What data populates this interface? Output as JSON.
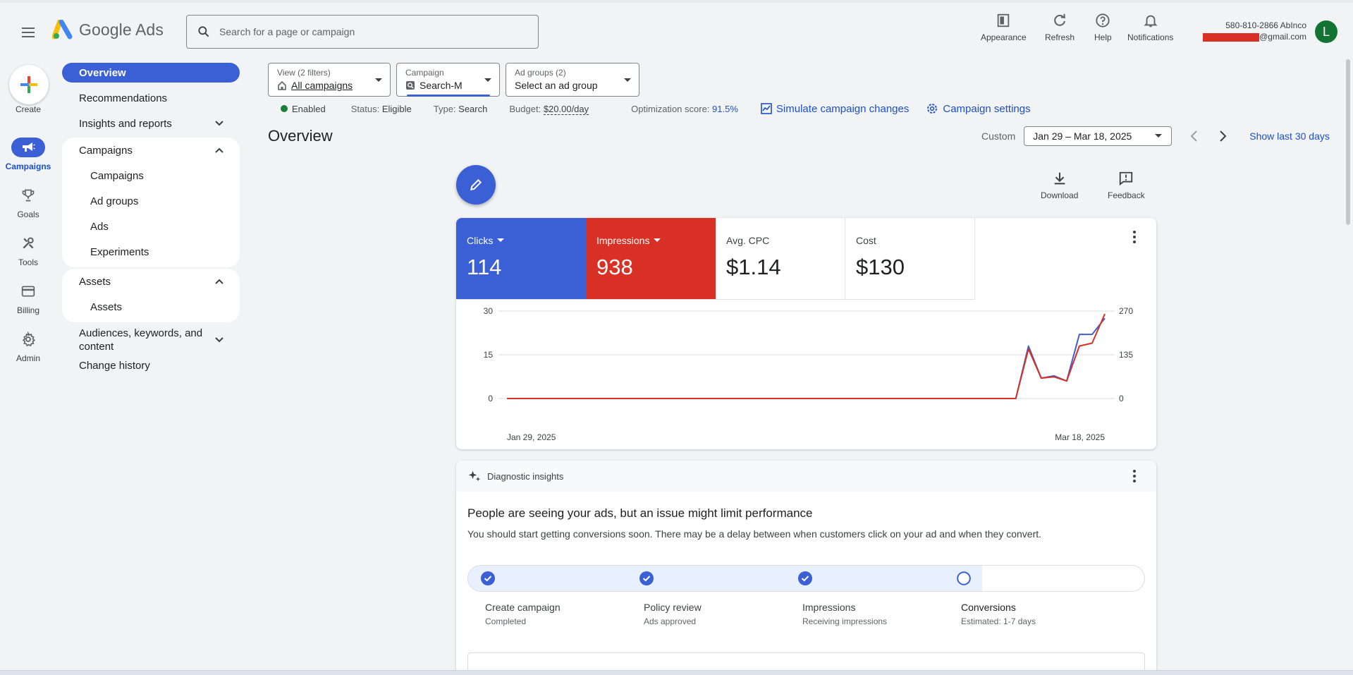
{
  "header": {
    "brand": "Google Ads",
    "search_placeholder": "Search for a page or campaign",
    "actions": [
      {
        "label": "Appearance",
        "icon": "appearance-icon"
      },
      {
        "label": "Refresh",
        "icon": "refresh-icon"
      },
      {
        "label": "Help",
        "icon": "help-icon"
      },
      {
        "label": "Notifications",
        "icon": "bell-icon"
      }
    ],
    "account_line1": "580-810-2866 AbInco",
    "account_email_suffix": "@gmail.com",
    "avatar_letter": "L"
  },
  "rail": {
    "create": "Create",
    "items": [
      {
        "label": "Campaigns",
        "icon": "campaigns-icon",
        "active": true
      },
      {
        "label": "Goals",
        "icon": "trophy-icon"
      },
      {
        "label": "Tools",
        "icon": "tools-icon"
      },
      {
        "label": "Billing",
        "icon": "billing-icon"
      },
      {
        "label": "Admin",
        "icon": "gear-icon"
      }
    ]
  },
  "nav": {
    "overview": "Overview",
    "recommendations": "Recommendations",
    "insights": "Insights and reports",
    "campaigns_group": "Campaigns",
    "campaigns_items": [
      "Campaigns",
      "Ad groups",
      "Ads",
      "Experiments"
    ],
    "assets_group": "Assets",
    "assets_items": [
      "Assets"
    ],
    "audiences": "Audiences, keywords, and content",
    "change_history": "Change history"
  },
  "filters": {
    "view_label": "View (2 filters)",
    "view_value": "All campaigns",
    "campaign_label": "Campaign",
    "campaign_value": "Search-M",
    "adgroups_label": "Ad groups (2)",
    "adgroups_value": "Select an ad group"
  },
  "status": {
    "enabled": "Enabled",
    "status_label": "Status:",
    "status_value": "Eligible",
    "type_label": "Type:",
    "type_value": "Search",
    "budget_label": "Budget:",
    "budget_value": "$20.00/day",
    "opt_label": "Optimization score:",
    "opt_value": "91.5%",
    "simulate": "Simulate campaign changes",
    "settings": "Campaign settings"
  },
  "page": {
    "title": "Overview",
    "date_mode": "Custom",
    "date_range": "Jan 29 – Mar 18, 2025",
    "show_last": "Show last 30 days",
    "download": "Download",
    "feedback": "Feedback"
  },
  "metrics": [
    {
      "label": "Clicks",
      "value": "114"
    },
    {
      "label": "Impressions",
      "value": "938"
    },
    {
      "label": "Avg. CPC",
      "value": "$1.14"
    },
    {
      "label": "Cost",
      "value": "$130"
    }
  ],
  "chart_data": {
    "type": "line",
    "x_start_label": "Jan 29, 2025",
    "x_end_label": "Mar 18, 2025",
    "y_left_ticks": [
      "0",
      "15",
      "30"
    ],
    "y_right_ticks": [
      "0",
      "135",
      "270"
    ],
    "ylim_left": [
      0,
      30
    ],
    "ylim_right": [
      0,
      270
    ],
    "grid": true,
    "series": [
      {
        "name": "Clicks",
        "color": "#3b5fd4",
        "axis": "left",
        "values": [
          0,
          0,
          0,
          0,
          0,
          0,
          0,
          0,
          0,
          0,
          0,
          0,
          0,
          0,
          0,
          0,
          0,
          0,
          0,
          0,
          0,
          0,
          0,
          0,
          0,
          0,
          0,
          0,
          0,
          0,
          0,
          0,
          0,
          0,
          0,
          0,
          0,
          0,
          0,
          0,
          0,
          18,
          7,
          7.8,
          6,
          22,
          22,
          27.5
        ]
      },
      {
        "name": "Impressions",
        "color": "#d93025",
        "axis": "right",
        "values": [
          0,
          0,
          0,
          0,
          0,
          0,
          0,
          0,
          0,
          0,
          0,
          0,
          0,
          0,
          0,
          0,
          0,
          0,
          0,
          0,
          0,
          0,
          0,
          0,
          0,
          0,
          0,
          0,
          0,
          0,
          0,
          0,
          0,
          0,
          0,
          0,
          0,
          0,
          0,
          0,
          0,
          153,
          63,
          67,
          54,
          162,
          171,
          261
        ]
      }
    ]
  },
  "diagnostic": {
    "header": "Diagnostic insights",
    "title": "People are seeing your ads, but an issue might limit performance",
    "desc": "You should start getting conversions soon. There may be a delay between when customers click on your ad and when they convert.",
    "progress_fraction": 0.76,
    "steps": [
      {
        "name": "Create campaign",
        "sub": "Completed",
        "done": true
      },
      {
        "name": "Policy review",
        "sub": "Ads approved",
        "done": true
      },
      {
        "name": "Impressions",
        "sub": "Receiving impressions",
        "done": true
      },
      {
        "name": "Conversions",
        "sub": "Estimated: 1-7 days",
        "done": false
      }
    ]
  }
}
